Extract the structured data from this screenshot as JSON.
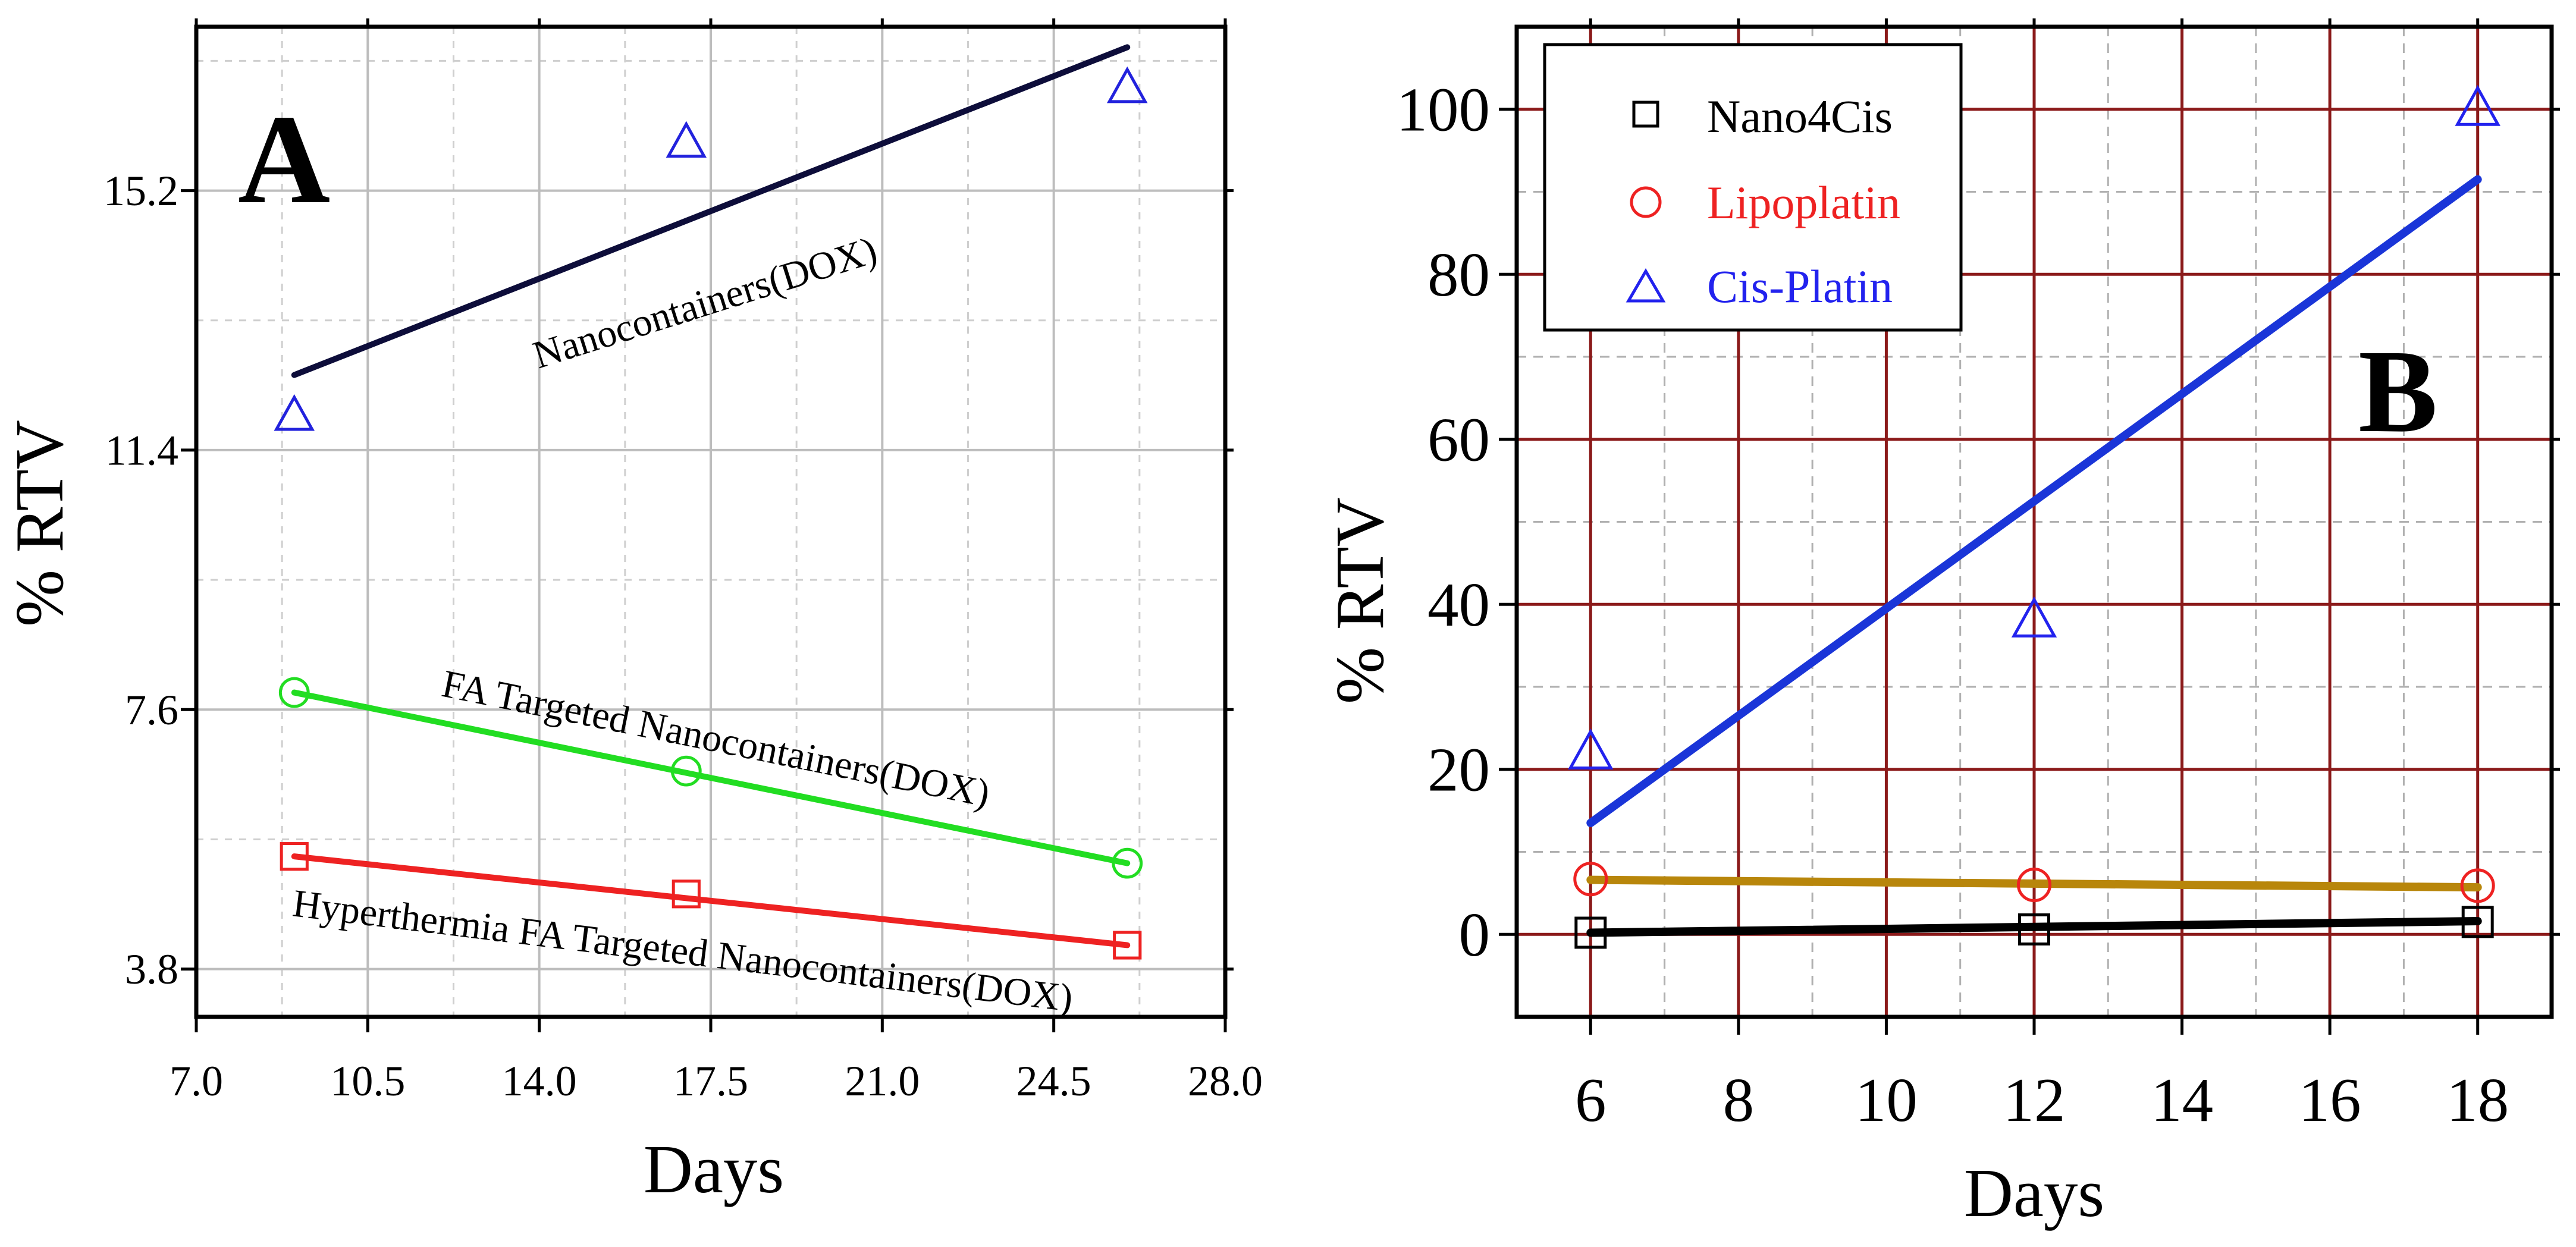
{
  "chart_data": [
    {
      "type": "line",
      "panel_label": "A",
      "xlabel": "Days",
      "ylabel": "% RTV",
      "xlim": [
        7.0,
        28.0
      ],
      "ylim": [
        3.1,
        17.6
      ],
      "x_ticks": [
        7.0,
        10.5,
        14.0,
        17.5,
        21.0,
        24.5,
        28.0
      ],
      "x_tick_labels": [
        "7.0",
        "10.5",
        "14.0",
        "17.5",
        "21.0",
        "24.5",
        "28.0"
      ],
      "y_ticks": [
        3.8,
        7.6,
        11.4,
        15.2
      ],
      "y_tick_labels": [
        "3.8",
        "7.6",
        "11.4",
        "15.2"
      ],
      "grid": true,
      "legend": "none",
      "series": [
        {
          "name": "Nanocontainers(DOX)",
          "marker": "triangle",
          "color": "#2222dd",
          "fit_color": "#0d0d3a",
          "points": [
            [
              9,
              11.9
            ],
            [
              17,
              15.9
            ],
            [
              26,
              16.7
            ]
          ],
          "fit": [
            [
              9,
              12.5
            ],
            [
              26,
              17.3
            ]
          ]
        },
        {
          "name": "FA Targeted Nanocontainers(DOX)",
          "marker": "circle",
          "color": "#22dd22",
          "fit_color": "#22dd22",
          "points": [
            [
              9,
              7.85
            ],
            [
              17,
              6.7
            ],
            [
              26,
              5.35
            ]
          ],
          "fit": [
            [
              9,
              7.85
            ],
            [
              26,
              5.35
            ]
          ]
        },
        {
          "name": "Hyperthermia FA Targeted Nanocontainers(DOX)",
          "marker": "square",
          "color": "#ee2222",
          "fit_color": "#ee2222",
          "points": [
            [
              9,
              5.45
            ],
            [
              17,
              4.9
            ],
            [
              26,
              4.15
            ]
          ],
          "fit": [
            [
              9,
              5.45
            ],
            [
              26,
              4.15
            ]
          ]
        }
      ]
    },
    {
      "type": "line",
      "panel_label": "B",
      "xlabel": "Days",
      "ylabel": "% RTV",
      "xlim": [
        5,
        19
      ],
      "ylim": [
        -10,
        110
      ],
      "x_ticks": [
        6,
        8,
        10,
        12,
        14,
        16,
        18
      ],
      "x_tick_labels": [
        "6",
        "8",
        "10",
        "12",
        "14",
        "16",
        "18"
      ],
      "y_ticks": [
        0,
        20,
        40,
        60,
        80,
        100
      ],
      "y_tick_labels": [
        "0",
        "20",
        "40",
        "60",
        "80",
        "100"
      ],
      "grid": true,
      "legend": "top-left",
      "series": [
        {
          "name": "Nano4Cis",
          "marker": "square",
          "color": "#000000",
          "fit_color": "#000000",
          "points": [
            [
              6,
              0.2
            ],
            [
              12,
              0.6
            ],
            [
              18,
              1.5
            ]
          ],
          "fit": [
            [
              6,
              0.2
            ],
            [
              18,
              1.6
            ]
          ]
        },
        {
          "name": "Lipoplatin",
          "marker": "circle",
          "color": "#ee2222",
          "fit_color": "#b8860b",
          "points": [
            [
              6,
              6.7
            ],
            [
              12,
              6.0
            ],
            [
              18,
              5.9
            ]
          ],
          "fit": [
            [
              6,
              6.6
            ],
            [
              18,
              5.7
            ]
          ]
        },
        {
          "name": "Cis-Platin",
          "marker": "triangle",
          "color": "#2222ee",
          "fit_color": "#1a35d8",
          "points": [
            [
              6,
              22
            ],
            [
              12,
              38
            ],
            [
              18,
              100
            ]
          ],
          "fit": [
            [
              6,
              13.5
            ],
            [
              18,
              91.5
            ]
          ]
        }
      ]
    }
  ]
}
